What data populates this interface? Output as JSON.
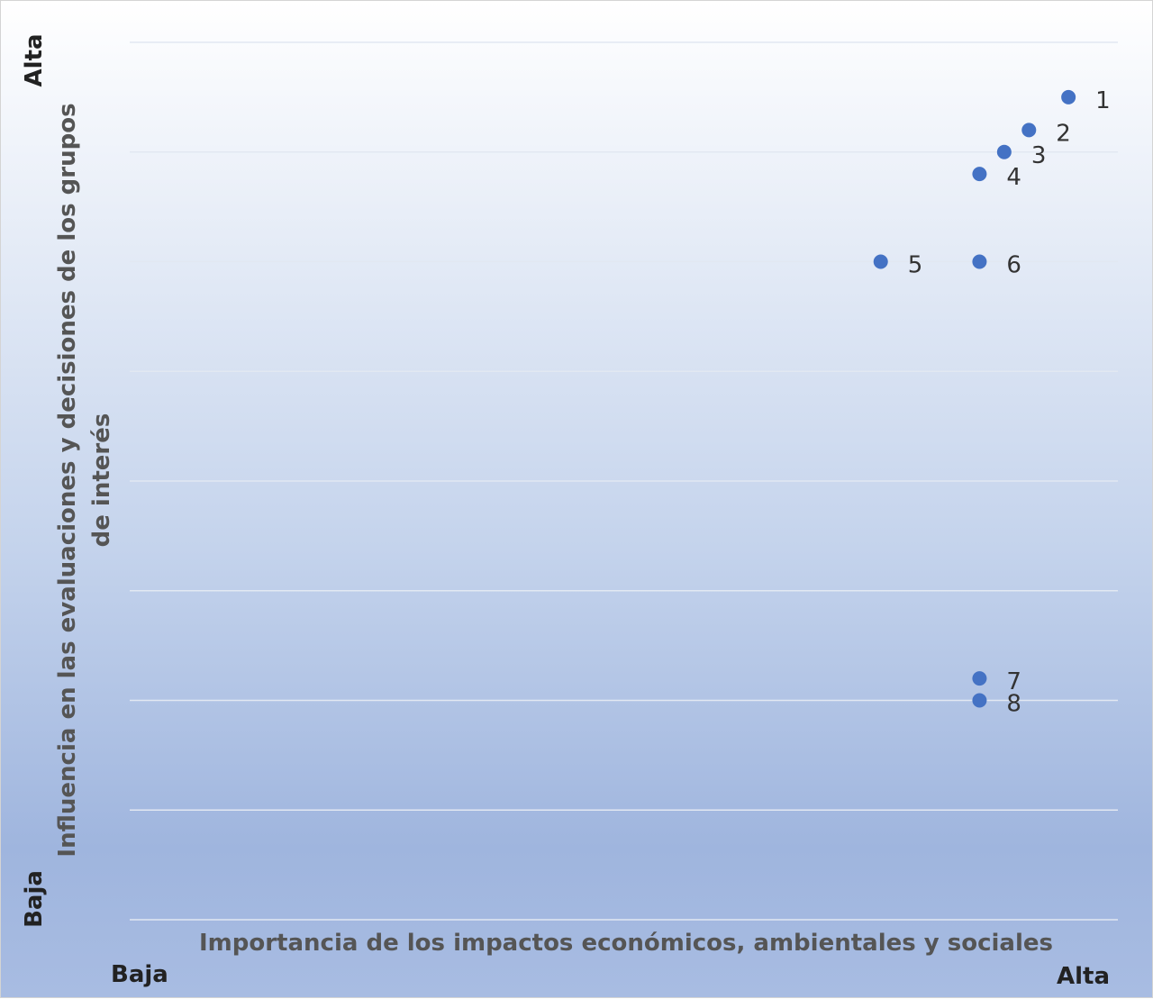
{
  "chart_data": {
    "type": "scatter",
    "xlabel": "Importancia de los impactos económicos, ambientales y sociales",
    "ylabel": "Influencia en las evaluaciones y decisiones de los grupos de interés",
    "x_scale_labels": {
      "low": "Baja",
      "high": "Alta"
    },
    "y_scale_labels": {
      "low": "Baja",
      "high": "Alta"
    },
    "xlim": [
      0,
      10
    ],
    "ylim": [
      0,
      8
    ],
    "grid": "horizontal",
    "marker_color": "#4472c4",
    "points": [
      {
        "label": "1",
        "x": 9.5,
        "y": 7.5
      },
      {
        "label": "2",
        "x": 9.1,
        "y": 7.2
      },
      {
        "label": "3",
        "x": 8.85,
        "y": 7.0
      },
      {
        "label": "4",
        "x": 8.6,
        "y": 6.8
      },
      {
        "label": "5",
        "x": 7.6,
        "y": 6.0
      },
      {
        "label": "6",
        "x": 8.6,
        "y": 6.0
      },
      {
        "label": "7",
        "x": 8.6,
        "y": 2.2
      },
      {
        "label": "8",
        "x": 8.6,
        "y": 2.0
      }
    ]
  }
}
